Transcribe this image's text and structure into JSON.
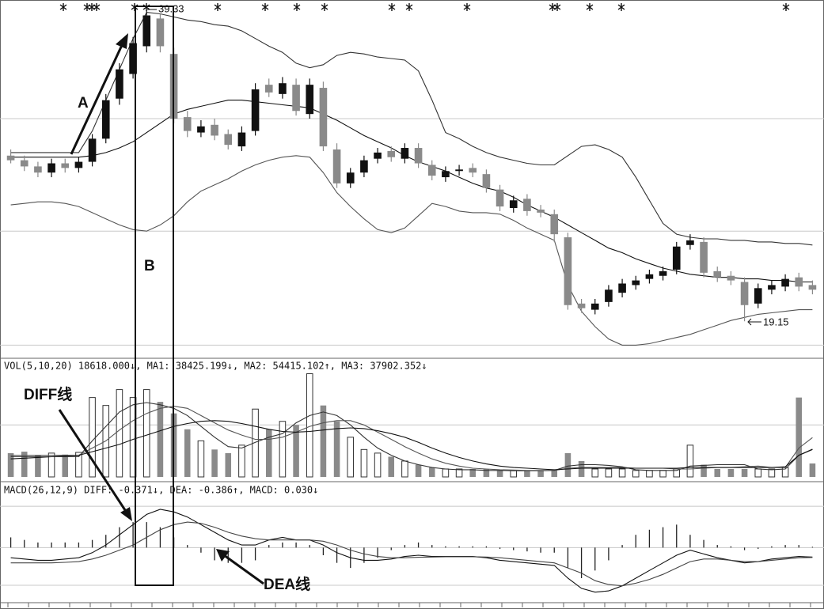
{
  "chart_data": [
    {
      "type": "candlestick",
      "annotations": [
        "A",
        "B",
        "39.33",
        "19.15"
      ],
      "up_color": "#111111",
      "down_color": "#8a8a8a",
      "ylim": [
        16.8,
        40
      ],
      "grid_lines": [
        32.3,
        25.0,
        17.6
      ],
      "open": [
        29.9,
        29.6,
        29.2,
        28.8,
        29.4,
        29.1,
        29.5,
        31.0,
        33.6,
        35.2,
        37.0,
        38.8,
        36.5,
        32.4,
        31.4,
        31.9,
        31.3,
        30.5,
        31.5,
        34.5,
        33.9,
        34.5,
        32.6,
        34.3,
        30.3,
        28.1,
        28.8,
        29.7,
        30.2,
        29.7,
        30.4,
        29.3,
        28.5,
        28.9,
        29.1,
        28.7,
        27.7,
        26.5,
        27.1,
        26.4,
        26.1,
        24.6,
        20.3,
        19.9,
        20.4,
        21.0,
        21.5,
        21.9,
        22.1,
        22.5,
        24.1,
        24.3,
        22.4,
        22.1,
        21.7,
        20.3,
        21.2,
        21.4,
        22.0,
        21.5
      ],
      "high": [
        30.3,
        29.9,
        29.5,
        29.7,
        29.7,
        29.8,
        31.3,
        33.9,
        35.9,
        37.6,
        39.33,
        39.1,
        36.9,
        32.8,
        32.2,
        32.3,
        31.6,
        31.8,
        34.6,
        34.9,
        35.0,
        34.9,
        34.9,
        34.7,
        30.7,
        29.1,
        29.9,
        30.4,
        30.5,
        30.7,
        30.7,
        29.6,
        29.2,
        29.3,
        29.4,
        29.0,
        28.0,
        27.3,
        27.4,
        26.7,
        26.4,
        24.9,
        20.6,
        20.6,
        21.5,
        21.9,
        22.1,
        22.5,
        22.7,
        24.3,
        24.8,
        24.6,
        22.7,
        22.4,
        22.0,
        21.6,
        21.8,
        22.2,
        22.3,
        21.8
      ],
      "low": [
        29.4,
        28.9,
        28.5,
        28.5,
        28.8,
        28.8,
        29.2,
        30.7,
        33.2,
        34.9,
        36.6,
        36.6,
        32.0,
        31.1,
        31.1,
        30.9,
        30.3,
        30.2,
        31.2,
        33.7,
        33.6,
        32.5,
        32.3,
        30.2,
        27.8,
        27.8,
        28.5,
        29.4,
        29.5,
        29.4,
        29.1,
        28.3,
        28.2,
        28.6,
        28.5,
        27.5,
        26.3,
        26.2,
        26.0,
        25.9,
        24.3,
        19.9,
        19.7,
        19.6,
        20.1,
        20.7,
        21.2,
        21.6,
        21.8,
        22.2,
        23.8,
        22.0,
        21.7,
        21.5,
        19.15,
        20.0,
        20.9,
        21.1,
        21.1,
        20.9
      ],
      "close": [
        29.6,
        29.2,
        28.8,
        29.4,
        29.1,
        29.5,
        31.0,
        33.5,
        35.5,
        37.2,
        39.0,
        37.0,
        32.3,
        31.5,
        31.8,
        31.2,
        30.6,
        31.4,
        34.2,
        34.0,
        34.6,
        32.8,
        34.5,
        30.5,
        28.1,
        28.8,
        29.6,
        30.1,
        29.8,
        30.4,
        29.4,
        28.6,
        28.9,
        29.0,
        28.8,
        27.8,
        26.6,
        27.0,
        26.3,
        26.2,
        24.8,
        20.2,
        20.0,
        20.3,
        21.2,
        21.6,
        21.8,
        22.2,
        22.4,
        24.0,
        24.4,
        22.3,
        22.0,
        21.8,
        20.2,
        21.3,
        21.5,
        21.9,
        21.4,
        21.2
      ],
      "series": [
        {
          "color": "#333333",
          "values": [
            30.1,
            30.1,
            30.1,
            30.1,
            30.1,
            30.1,
            31.5,
            33.5,
            35.5,
            37.5,
            39.2,
            39.1,
            38.9,
            38.7,
            38.6,
            38.4,
            38.3,
            38.0,
            37.5,
            37.0,
            36.6,
            35.9,
            35.6,
            35.8,
            36.4,
            36.6,
            36.5,
            36.3,
            36.2,
            36.1,
            35.4,
            33.5,
            31.4,
            31.0,
            30.5,
            30.1,
            29.8,
            29.6,
            29.4,
            29.3,
            29.3,
            29.9,
            30.5,
            30.6,
            30.3,
            29.8,
            28.5,
            27.0,
            25.5,
            24.8,
            24.6,
            24.5,
            24.5,
            24.4,
            24.4,
            24.3,
            24.3,
            24.2,
            24.2,
            24.1
          ]
        },
        {
          "color": "#111111",
          "values": [
            29.8,
            29.8,
            29.8,
            29.8,
            29.8,
            29.8,
            29.9,
            30.1,
            30.4,
            30.8,
            31.4,
            32.0,
            32.6,
            32.9,
            33.1,
            33.3,
            33.5,
            33.5,
            33.4,
            33.3,
            33.2,
            33.1,
            33.0,
            32.6,
            32.2,
            31.7,
            31.2,
            30.8,
            30.4,
            29.9,
            29.5,
            29.2,
            28.9,
            28.5,
            28.1,
            27.8,
            27.6,
            27.2,
            26.7,
            26.3,
            25.9,
            25.4,
            24.9,
            24.4,
            23.9,
            23.6,
            23.2,
            22.9,
            22.6,
            22.4,
            22.2,
            22.1,
            22.0,
            22.0,
            21.9,
            21.9,
            21.8,
            21.8,
            21.7,
            21.7
          ]
        },
        {
          "color": "#555555",
          "values": [
            26.7,
            26.8,
            26.9,
            26.9,
            26.8,
            26.6,
            26.2,
            25.8,
            25.4,
            25.1,
            25.0,
            25.4,
            26.0,
            26.9,
            27.6,
            28.0,
            28.4,
            28.9,
            29.3,
            29.6,
            29.8,
            29.9,
            29.8,
            28.8,
            27.5,
            26.6,
            25.8,
            25.1,
            24.9,
            25.2,
            26.0,
            26.8,
            26.6,
            26.3,
            26.2,
            26.2,
            26.1,
            25.7,
            25.2,
            24.8,
            24.4,
            21.5,
            19.8,
            18.8,
            18.0,
            17.6,
            17.6,
            17.7,
            17.9,
            18.1,
            18.3,
            18.6,
            18.9,
            19.2,
            19.4,
            19.6,
            19.7,
            19.8,
            19.9,
            19.9
          ]
        }
      ]
    },
    {
      "type": "bar",
      "header": "VOL(5,10,20) 18618.000↓, MA1: 38425.199↓, MA2: 54415.102↑, MA3: 37902.352↓",
      "color": "#8a8a8a",
      "ylim": [
        0,
        160000
      ],
      "grid_lines": [
        72000
      ],
      "values": [
        33000,
        35000,
        30000,
        33000,
        31000,
        34000,
        110000,
        99000,
        121000,
        110000,
        121000,
        104000,
        88000,
        66000,
        50000,
        38000,
        33000,
        44000,
        94000,
        66000,
        77000,
        72000,
        143000,
        99000,
        77000,
        55000,
        38000,
        33000,
        28000,
        22000,
        17000,
        13000,
        11000,
        11000,
        11000,
        11000,
        9000,
        9000,
        9000,
        9000,
        9000,
        33000,
        22000,
        11000,
        11000,
        11000,
        9000,
        9000,
        9000,
        11000,
        44000,
        17000,
        11000,
        11000,
        11000,
        11000,
        11000,
        13000,
        110000,
        18618
      ],
      "series": [
        {
          "color": "#333333",
          "values": [
            28000,
            28000,
            28000,
            28000,
            28000,
            28000,
            50000,
            70000,
            90000,
            100000,
            103000,
            100000,
            95000,
            85000,
            70000,
            55000,
            42000,
            40000,
            48000,
            55000,
            60000,
            75000,
            85000,
            90000,
            85000,
            72000,
            55000,
            40000,
            30000,
            22000,
            17000,
            13000,
            11000,
            10000,
            10000,
            9000,
            9000,
            8500,
            8500,
            8500,
            9000,
            15000,
            17000,
            17000,
            16000,
            14000,
            10000,
            9000,
            9000,
            9000,
            15000,
            16000,
            17000,
            17000,
            17000,
            11000,
            10000,
            11000,
            30000,
            38425
          ]
        },
        {
          "color": "#555555",
          "values": [
            30000,
            30000,
            30000,
            30000,
            30000,
            30000,
            40000,
            50000,
            65000,
            78000,
            88000,
            95000,
            98000,
            95000,
            85000,
            75000,
            65000,
            58000,
            52000,
            52000,
            55000,
            62000,
            70000,
            75000,
            78000,
            78000,
            72000,
            62000,
            52000,
            42000,
            33000,
            25000,
            19000,
            15000,
            12000,
            11000,
            10000,
            9500,
            9000,
            9000,
            9000,
            12000,
            13000,
            13000,
            13000,
            13000,
            12000,
            12000,
            12000,
            11000,
            11000,
            12000,
            13000,
            13000,
            14000,
            15000,
            13000,
            13000,
            40000,
            54415
          ]
        },
        {
          "color": "#111111",
          "values": [
            25000,
            26000,
            27000,
            28000,
            29000,
            30000,
            35000,
            40000,
            45000,
            52000,
            58000,
            64000,
            70000,
            74000,
            77000,
            78000,
            77000,
            74000,
            70000,
            66000,
            63000,
            62000,
            63000,
            65000,
            67000,
            68000,
            67000,
            64000,
            60000,
            55000,
            48000,
            40000,
            33000,
            27000,
            22000,
            18000,
            15000,
            13000,
            12000,
            11000,
            10000,
            11000,
            12000,
            12000,
            12000,
            12000,
            12000,
            12000,
            12000,
            12000,
            13000,
            13000,
            13000,
            13000,
            13000,
            13000,
            13000,
            14000,
            30000,
            37902
          ]
        }
      ]
    },
    {
      "type": "macd",
      "header": "MACD(26,12,9) DIFF: -0.371↓, DEA: -0.386↑, MACD: 0.030↓",
      "annotations": [
        "DIFF线",
        "DEA线"
      ],
      "color": "#222222",
      "ylim": [
        -2.1,
        2.4
      ],
      "grid_lines": [
        1.62,
        0,
        -1.48
      ],
      "values": [
        0.4,
        0.3,
        0.2,
        0.2,
        0.2,
        0.2,
        0.3,
        0.5,
        0.8,
        1.0,
        1.0,
        0.8,
        0.4,
        0.1,
        -0.2,
        -0.5,
        -0.6,
        -0.6,
        -0.5,
        0.1,
        0.2,
        0.2,
        0.1,
        -0.3,
        -0.6,
        -0.8,
        -0.6,
        -0.4,
        -0.1,
        0.1,
        0.2,
        0.1,
        0.05,
        0.05,
        0.05,
        0.05,
        -0.05,
        -0.1,
        -0.15,
        -0.2,
        -0.2,
        -0.8,
        -1.2,
        -0.9,
        -0.5,
        0.1,
        0.5,
        0.7,
        0.8,
        0.9,
        0.5,
        0.3,
        0.1,
        0.05,
        -0.1,
        -0.05,
        0.05,
        0.1,
        0.1,
        0.03
      ],
      "series": [
        {
          "color": "#111111",
          "values": [
            -0.4,
            -0.45,
            -0.5,
            -0.5,
            -0.45,
            -0.4,
            -0.2,
            0.1,
            0.5,
            0.9,
            1.3,
            1.5,
            1.4,
            1.2,
            0.9,
            0.6,
            0.3,
            0.1,
            0.1,
            0.3,
            0.4,
            0.3,
            0.3,
            0.1,
            -0.2,
            -0.4,
            -0.5,
            -0.5,
            -0.45,
            -0.35,
            -0.3,
            -0.35,
            -0.35,
            -0.35,
            -0.35,
            -0.4,
            -0.5,
            -0.55,
            -0.6,
            -0.65,
            -0.7,
            -1.2,
            -1.6,
            -1.75,
            -1.7,
            -1.5,
            -1.2,
            -0.9,
            -0.6,
            -0.3,
            -0.1,
            -0.25,
            -0.4,
            -0.5,
            -0.6,
            -0.55,
            -0.45,
            -0.4,
            -0.35,
            -0.371
          ]
        },
        {
          "color": "#444444",
          "values": [
            -0.6,
            -0.6,
            -0.6,
            -0.6,
            -0.58,
            -0.55,
            -0.45,
            -0.3,
            -0.1,
            0.1,
            0.4,
            0.7,
            0.9,
            1.0,
            0.95,
            0.8,
            0.6,
            0.45,
            0.35,
            0.3,
            0.3,
            0.3,
            0.3,
            0.25,
            0.1,
            -0.1,
            -0.25,
            -0.35,
            -0.4,
            -0.4,
            -0.38,
            -0.37,
            -0.36,
            -0.36,
            -0.36,
            -0.37,
            -0.4,
            -0.45,
            -0.5,
            -0.55,
            -0.6,
            -0.8,
            -1.0,
            -1.3,
            -1.45,
            -1.5,
            -1.4,
            -1.25,
            -1.05,
            -0.8,
            -0.55,
            -0.45,
            -0.45,
            -0.5,
            -0.55,
            -0.55,
            -0.5,
            -0.45,
            -0.4,
            -0.386
          ]
        }
      ]
    }
  ]
}
